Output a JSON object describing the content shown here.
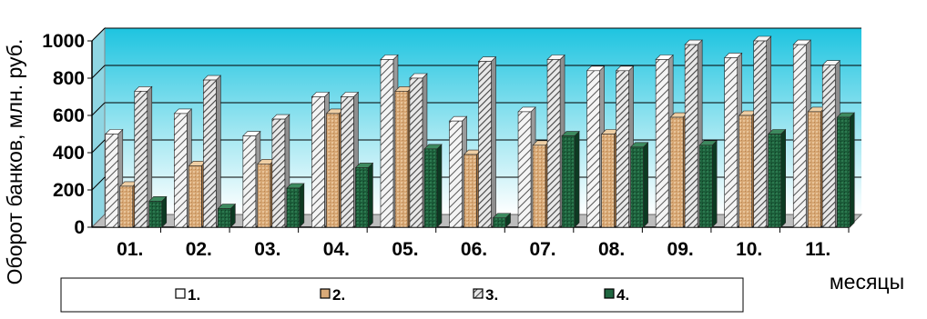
{
  "chart_data": {
    "type": "bar",
    "categories": [
      "01.",
      "02.",
      "03.",
      "04.",
      "05.",
      "06.",
      "07.",
      "08.",
      "09.",
      "10.",
      "11."
    ],
    "series": [
      {
        "name": "1.",
        "values": [
          500,
          610,
          490,
          700,
          900,
          570,
          620,
          840,
          900,
          910,
          980
        ]
      },
      {
        "name": "2.",
        "values": [
          220,
          330,
          340,
          610,
          730,
          390,
          440,
          500,
          590,
          600,
          620
        ]
      },
      {
        "name": "3.",
        "values": [
          730,
          790,
          580,
          700,
          800,
          890,
          900,
          840,
          980,
          1000,
          870
        ]
      },
      {
        "name": "4.",
        "values": [
          140,
          100,
          210,
          320,
          420,
          50,
          490,
          430,
          440,
          500,
          590
        ]
      }
    ],
    "ylabel": "Оборот банков, млн. руб.",
    "xlabel": "месяцы",
    "yticks": [
      "0",
      "200",
      "400",
      "600",
      "800",
      "1000"
    ],
    "ylim": [
      0,
      1000
    ],
    "grid": true,
    "legend": "bottom",
    "colors": {
      "series1": "#f2f2f2",
      "series2": "#d9aa78",
      "series3": "#e6e6e6",
      "series4": "#1f6640",
      "plot_top": "#1ec4e0",
      "plot_bottom": "#ffffff"
    }
  }
}
